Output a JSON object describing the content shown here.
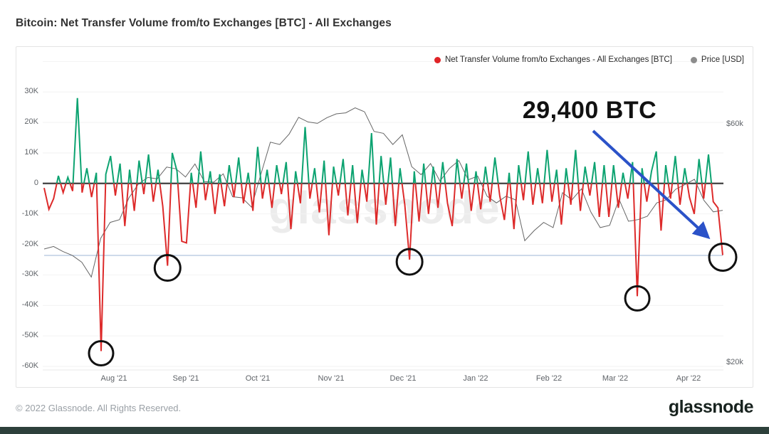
{
  "page": {
    "title": "Bitcoin: Net Transfer Volume from/to Exchanges [BTC] - All Exchanges",
    "footer_copyright": "© 2022 Glassnode. All Rights Reserved.",
    "footer_logo": "glassnode",
    "bottom_bar_color": "#2d403b"
  },
  "watermark": "glassnode",
  "legend": [
    {
      "label": "Net Transfer Volume from/to Exchanges - All Exchanges [BTC]",
      "color": "#e02427"
    },
    {
      "label": "Price [USD]",
      "color": "#8c8c8c"
    }
  ],
  "annotation": {
    "text": "29,400 BTC"
  },
  "chart_data": {
    "type": "line",
    "title": "Bitcoin: Net Transfer Volume from/to Exchanges [BTC] - All Exchanges",
    "x_axis": {
      "ticks": [
        "Aug '21",
        "Sep '21",
        "Oct '21",
        "Nov '21",
        "Dec '21",
        "Jan '22",
        "Feb '22",
        "Mar '22",
        "Apr '22"
      ],
      "tick_x": [
        160,
        261,
        362,
        465,
        566,
        668,
        771,
        864,
        967
      ],
      "range_note": "Jul 2021 - Apr 2022"
    },
    "y_axis_left": {
      "title": "Net Transfer Volume (BTC)",
      "labels": [
        "30K",
        "20K",
        "10K",
        "0",
        "-10K",
        "-20K",
        "-30K",
        "-40K",
        "-50K",
        "-60K"
      ],
      "values": [
        30,
        20,
        10,
        0,
        -10,
        -20,
        -30,
        -40,
        -50,
        -60
      ],
      "gridline_values": [
        40,
        30,
        20,
        10,
        0,
        -10,
        -20,
        -30,
        -40,
        -50,
        -60
      ]
    },
    "y_axis_right": {
      "title": "Price [USD]",
      "labels": [
        "$60k",
        "$20k"
      ],
      "values": [
        60,
        20
      ],
      "scale": "log"
    },
    "series": [
      {
        "name": "Net Transfer Volume from/to Exchanges - All Exchanges [BTC]",
        "unit": "K BTC",
        "color_positive": "#0da371",
        "color_negative": "#dd2a2a",
        "values": [
          -1.5,
          -8.5,
          -5,
          2.5,
          -3,
          2,
          -2.5,
          28,
          -3,
          5,
          -4.5,
          3.5,
          -55,
          3,
          9,
          -4,
          6.5,
          -14,
          4.5,
          -9,
          7.5,
          -3.5,
          9.5,
          -6,
          4.5,
          -7.5,
          -27,
          10,
          4,
          -19,
          -19.5,
          3.5,
          -8,
          10.5,
          -5.5,
          4,
          -10,
          3,
          -7.5,
          6,
          -4.5,
          8.5,
          -6.5,
          3.5,
          -9,
          12,
          -5,
          4.5,
          -8,
          6,
          -3.5,
          7,
          -15,
          4,
          -6.5,
          18.5,
          -5,
          5,
          -9.5,
          7.5,
          -17,
          5.5,
          -4,
          8,
          -10.5,
          6,
          -13,
          4.5,
          -6,
          16.5,
          -13.5,
          9,
          -7,
          8.5,
          -14,
          5,
          -7,
          -25,
          4,
          -12.5,
          6.5,
          -10,
          5.5,
          -8,
          7,
          -6.5,
          -14,
          8,
          -5,
          6.5,
          -9,
          4,
          -8.5,
          5.5,
          -6,
          8.5,
          -4,
          -12,
          3.5,
          -15,
          6,
          -5.5,
          10.5,
          -7,
          5,
          -6.5,
          11,
          -6,
          4.5,
          -13.5,
          5,
          -7,
          11,
          -9,
          5.5,
          -4,
          7,
          -11,
          6,
          -11,
          6,
          -8,
          3.5,
          -5,
          7,
          -37,
          5,
          -6,
          4,
          10.5,
          -15.5,
          6,
          -5,
          9,
          -7,
          5,
          -4.5,
          -10,
          8,
          -5,
          9.5,
          -6,
          -8,
          -23.5
        ]
      },
      {
        "name": "Price [USD]",
        "unit": "$k",
        "color": "#666666",
        "values": [
          33.8,
          34.2,
          33.4,
          32.8,
          31.8,
          29.7,
          35.5,
          38.2,
          38.7,
          42.8,
          45.6,
          47,
          46.7,
          49.3,
          48.9,
          47.1,
          50,
          46.1,
          46,
          47.8,
          43,
          42.8,
          41,
          47.7,
          55.3,
          54.7,
          57.4,
          62,
          60.7,
          60.3,
          61.9,
          63,
          63.3,
          64.8,
          63.6,
          58.1,
          57.6,
          54.7,
          57.2,
          49.4,
          47.6,
          50.1,
          46.2,
          49,
          50.8,
          46.5,
          47.3,
          43.1,
          41.8,
          43.1,
          42.4,
          35.1,
          36.8,
          38.2,
          37.3,
          43.8,
          42.4,
          44.6,
          40.1,
          37.3,
          37.7,
          42.5,
          38.4,
          38.7,
          39.3,
          41.8,
          42.4,
          44.5,
          45.5,
          46.6,
          42.3,
          40.1,
          40.4
        ]
      }
    ],
    "highlight_circles": [
      {
        "series_index": 12,
        "approx_value_btc": -55000,
        "radius": 17
      },
      {
        "series_index": 26,
        "approx_value_btc": -27000,
        "radius": 18
      },
      {
        "series_index": 77,
        "approx_value_btc": -25000,
        "radius": 18
      },
      {
        "series_index": 125,
        "approx_value_btc": -37000,
        "radius": 17
      },
      {
        "series_index": 143,
        "approx_value_btc": -23500,
        "radius": 19
      }
    ],
    "reference_line": {
      "value_btc_k": -23.6,
      "color": "#9cb4d6"
    },
    "annotation_arrow": {
      "label": "29,400 BTC",
      "color": "#2b52c8"
    }
  }
}
